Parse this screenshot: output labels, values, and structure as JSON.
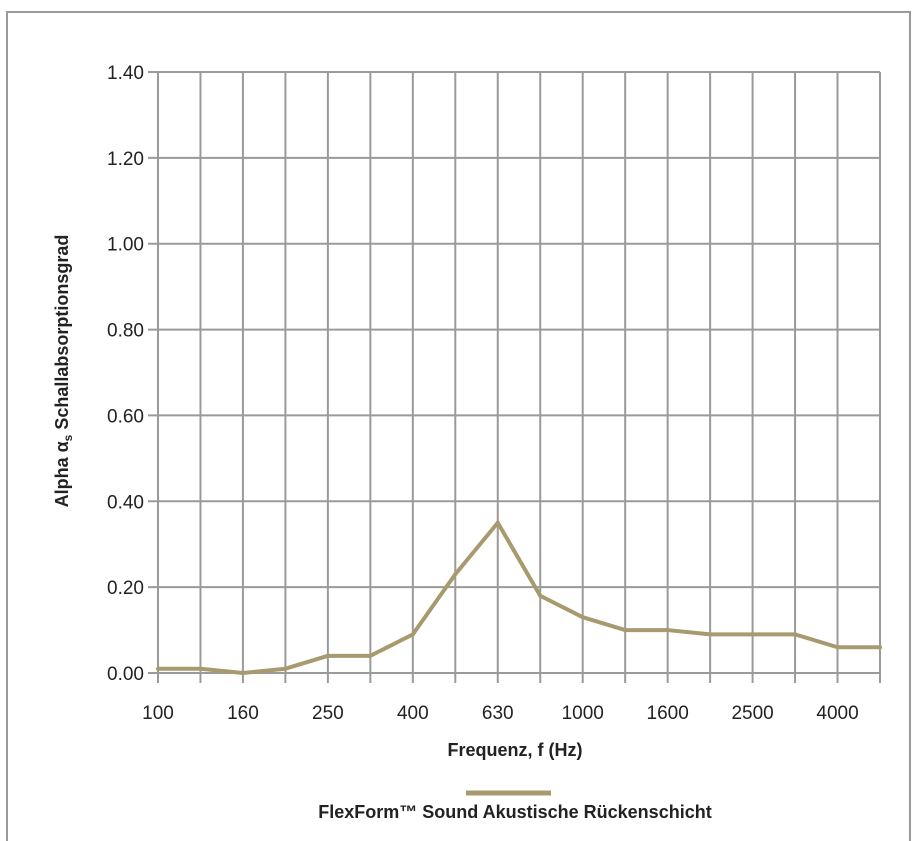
{
  "chart_data": {
    "type": "line",
    "title": "",
    "xlabel": "Frequenz, f (Hz)",
    "ylabel_main": "Alpha α",
    "ylabel_sub": "s",
    "ylabel_rest": " Schallabsorptionsgrad",
    "x": [
      "100",
      "125",
      "160",
      "200",
      "250",
      "315",
      "400",
      "500",
      "630",
      "800",
      "1000",
      "1250",
      "1600",
      "2000",
      "2500",
      "3150",
      "4000",
      "5000"
    ],
    "x_tick_labels": [
      "100",
      "160",
      "250",
      "400",
      "630",
      "1000",
      "1600",
      "2500",
      "4000"
    ],
    "y_tick_labels": [
      "0.00",
      "0.20",
      "0.40",
      "0.60",
      "0.80",
      "1.00",
      "1.20",
      "1.40"
    ],
    "ylim": [
      0,
      1.4
    ],
    "grid": true,
    "legend_position": "bottom-center",
    "series": [
      {
        "name": "FlexForm™ Sound Akustische Rückenschicht",
        "color": "#a89a6e",
        "values": [
          0.01,
          0.01,
          0.0,
          0.01,
          0.04,
          0.04,
          0.09,
          0.23,
          0.35,
          0.18,
          0.13,
          0.1,
          0.1,
          0.09,
          0.09,
          0.09,
          0.06,
          0.06
        ]
      }
    ]
  },
  "colors": {
    "grid": "#9a9a9a",
    "frame": "#9a9a9a",
    "line": "#a89a6e"
  }
}
